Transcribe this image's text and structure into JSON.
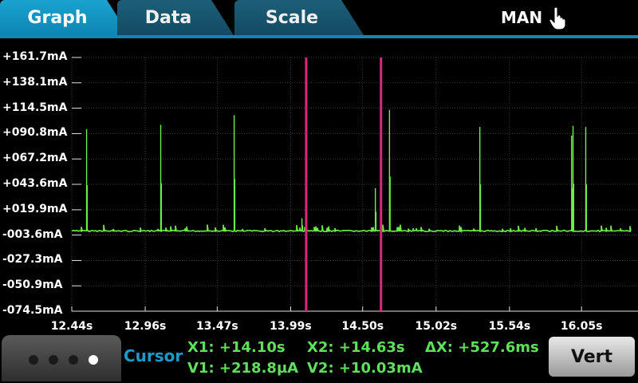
{
  "tabs": [
    {
      "label": "Graph",
      "active": true
    },
    {
      "label": "Data",
      "active": false
    },
    {
      "label": "Scale",
      "active": false
    }
  ],
  "mode_label": "MAN",
  "hand_icon": "hand-pointer-icon",
  "colors": {
    "trace": "#6ef04a",
    "cursor": "#e0257e",
    "accent": "#1a9bc9",
    "readout": "#5ee05a"
  },
  "chart_data": {
    "type": "line",
    "title": "",
    "xlabel": "",
    "ylabel": "",
    "y_tick_labels": [
      "+161.7mA",
      "+138.1mA",
      "+114.5mA",
      "+090.8mA",
      "+067.2mA",
      "+043.6mA",
      "+019.9mA",
      "-003.6mA",
      "-027.3mA",
      "-050.9mA",
      "-074.5mA"
    ],
    "y_tick_values": [
      161.7,
      138.1,
      114.5,
      90.8,
      67.2,
      43.6,
      19.9,
      -3.6,
      -27.3,
      -50.9,
      -74.5
    ],
    "x_tick_labels": [
      "12.44s",
      "12.96s",
      "13.47s",
      "13.99s",
      "14.50s",
      "15.02s",
      "15.54s",
      "16.05s"
    ],
    "x_tick_values": [
      12.44,
      12.96,
      13.47,
      13.99,
      14.5,
      15.02,
      15.54,
      16.05
    ],
    "xlim": [
      12.44,
      16.45
    ],
    "ylim": [
      -74.5,
      161.7
    ],
    "baseline_mA": 0.2,
    "spikes": [
      {
        "t": 12.545,
        "peak": 95
      },
      {
        "t": 13.07,
        "peak": 99
      },
      {
        "t": 13.59,
        "peak": 108
      },
      {
        "t": 14.07,
        "peak": 12
      },
      {
        "t": 14.59,
        "peak": 40
      },
      {
        "t": 14.69,
        "peak": 113
      },
      {
        "t": 15.33,
        "peak": 97
      },
      {
        "t": 15.98,
        "peak": 89
      },
      {
        "t": 15.99,
        "peak": 98
      },
      {
        "t": 16.08,
        "peak": 97
      }
    ],
    "cursors": [
      14.1,
      14.63
    ],
    "grid": true,
    "legend": "none"
  },
  "bottom": {
    "cursor_label": "Cursor",
    "x1": "X1: +14.10s",
    "x2": "X2: +14.63s",
    "dx": "ΔX: +527.6ms",
    "v1": "V1: +218.8µA",
    "v2": "V2: +10.03mA",
    "vert_button": "Vert",
    "page_dots": 4,
    "active_dot": 4
  }
}
